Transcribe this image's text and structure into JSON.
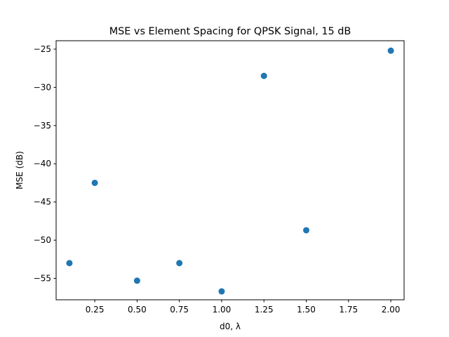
{
  "chart_data": {
    "type": "scatter",
    "title": "MSE vs Element Spacing for QPSK Signal, 15 dB",
    "xlabel": "d0, λ",
    "ylabel": "MSE (dB)",
    "xlim": [
      0.0215,
      2.0785
    ],
    "ylim": [
      -57.8,
      -23.9
    ],
    "xticks": [
      0.25,
      0.5,
      0.75,
      1.0,
      1.25,
      1.5,
      1.75,
      2.0
    ],
    "xtick_labels": [
      "0.25",
      "0.50",
      "0.75",
      "1.00",
      "1.25",
      "1.50",
      "1.75",
      "2.00"
    ],
    "yticks": [
      -25,
      -30,
      -35,
      -40,
      -45,
      -50,
      -55
    ],
    "ytick_labels": [
      "−25",
      "−30",
      "−35",
      "−40",
      "−45",
      "−50",
      "−55"
    ],
    "grid": false,
    "legend": "none",
    "marker_color": "#1f77b4",
    "series": [
      {
        "x": [
          0.1,
          0.25,
          0.5,
          0.75,
          1.0,
          1.25,
          1.5,
          2.0
        ],
        "y": [
          -53.0,
          -42.5,
          -55.3,
          -53.0,
          -56.7,
          -28.5,
          -48.7,
          -25.2
        ]
      }
    ]
  }
}
